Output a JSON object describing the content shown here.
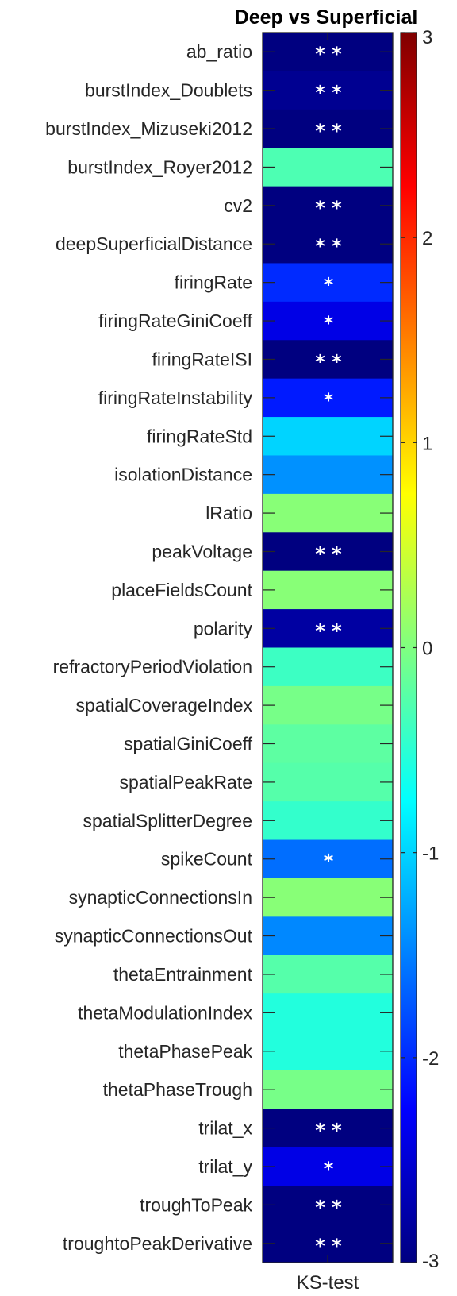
{
  "chart_data": {
    "type": "heatmap",
    "title": "Deep vs Superficial",
    "xlabel": "KS-test",
    "columns": [
      "KS-test"
    ],
    "rows": [
      {
        "name": "ab_ratio",
        "value": -3.0,
        "stars": "* *"
      },
      {
        "name": "burstIndex_Doublets",
        "value": -2.9,
        "stars": "* *"
      },
      {
        "name": "burstIndex_Mizuseki2012",
        "value": -3.0,
        "stars": "* *"
      },
      {
        "name": "burstIndex_Royer2012",
        "value": -0.3,
        "stars": ""
      },
      {
        "name": "cv2",
        "value": -3.0,
        "stars": "* *"
      },
      {
        "name": "deepSuperficialDistance",
        "value": -3.0,
        "stars": "* *"
      },
      {
        "name": "firingRate",
        "value": -2.0,
        "stars": "*"
      },
      {
        "name": "firingRateGiniCoeff",
        "value": -2.4,
        "stars": "*"
      },
      {
        "name": "firingRateISI",
        "value": -3.0,
        "stars": "* *"
      },
      {
        "name": "firingRateInstability",
        "value": -2.1,
        "stars": "*"
      },
      {
        "name": "firingRateStd",
        "value": -1.0,
        "stars": ""
      },
      {
        "name": "isolationDistance",
        "value": -1.4,
        "stars": ""
      },
      {
        "name": "lRatio",
        "value": 0.05,
        "stars": ""
      },
      {
        "name": "peakVoltage",
        "value": -3.0,
        "stars": "* *"
      },
      {
        "name": "placeFieldsCount",
        "value": 0.05,
        "stars": ""
      },
      {
        "name": "polarity",
        "value": -2.8,
        "stars": "* *"
      },
      {
        "name": "refractoryPeriodViolation",
        "value": -0.4,
        "stars": ""
      },
      {
        "name": "spatialCoverageIndex",
        "value": -0.05,
        "stars": ""
      },
      {
        "name": "spatialGiniCoeff",
        "value": -0.2,
        "stars": ""
      },
      {
        "name": "spatialPeakRate",
        "value": -0.25,
        "stars": ""
      },
      {
        "name": "spatialSplitterDegree",
        "value": -0.45,
        "stars": ""
      },
      {
        "name": "spikeCount",
        "value": -1.6,
        "stars": "*"
      },
      {
        "name": "synapticConnectionsIn",
        "value": 0.05,
        "stars": ""
      },
      {
        "name": "synapticConnectionsOut",
        "value": -1.45,
        "stars": ""
      },
      {
        "name": "thetaEntrainment",
        "value": -0.25,
        "stars": ""
      },
      {
        "name": "thetaModulationIndex",
        "value": -0.55,
        "stars": ""
      },
      {
        "name": "thetaPhasePeak",
        "value": -0.55,
        "stars": ""
      },
      {
        "name": "thetaPhaseTrough",
        "value": -0.05,
        "stars": ""
      },
      {
        "name": "trilat_x",
        "value": -3.0,
        "stars": "* *"
      },
      {
        "name": "trilat_y",
        "value": -2.4,
        "stars": "*"
      },
      {
        "name": "troughToPeak",
        "value": -3.0,
        "stars": "* *"
      },
      {
        "name": "troughtoPeakDerivative",
        "value": -3.0,
        "stars": "* *"
      }
    ],
    "colorbar": {
      "colormap": "jet",
      "clim": [
        -3,
        3
      ],
      "ticks": [
        3,
        2,
        1,
        0,
        -1,
        -2,
        -3
      ],
      "tick_labels": [
        "3",
        "2",
        "1",
        "0",
        "-1",
        "-2",
        "-3"
      ]
    }
  }
}
